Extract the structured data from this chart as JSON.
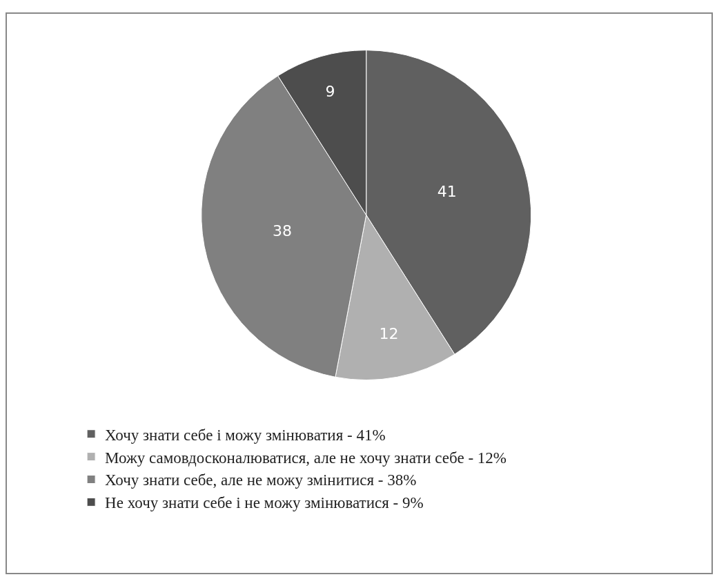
{
  "chart_data": {
    "type": "pie",
    "categories": [
      "Хочу знати себе і можу змінюватия - 41%",
      "Можу самовдосконалюватися, але не хочу знати себе - 12%",
      "Хочу знати себе, але не можу змінитися - 38%",
      "Не хочу знати себе і не можу змінюватися - 9%"
    ],
    "values": [
      41,
      12,
      38,
      9
    ],
    "colors": [
      "#606060",
      "#b0b0b0",
      "#808080",
      "#4d4d4d"
    ],
    "data_labels": true,
    "legend": "bottom"
  }
}
